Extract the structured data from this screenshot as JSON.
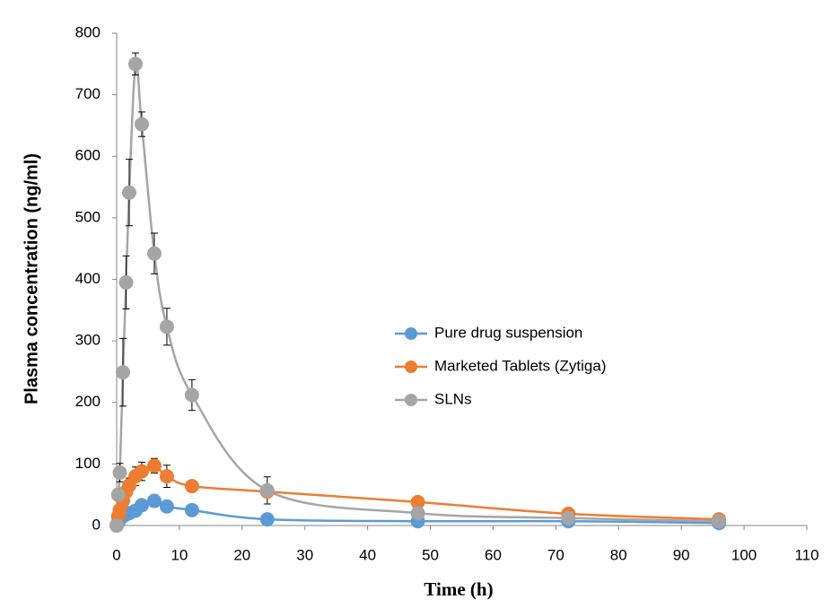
{
  "chart_data": {
    "type": "line",
    "x_label": "Time (h)",
    "y_label": "Plasma concentration (ng/ml)",
    "x": [
      0,
      0.25,
      0.5,
      1,
      1.5,
      2,
      3,
      4,
      6,
      8,
      12,
      24,
      48,
      72,
      96
    ],
    "series": [
      {
        "name": "Pure drug suspension",
        "color": "#5b9bd5",
        "values": [
          0,
          5,
          10,
          15,
          18,
          20,
          24,
          33,
          40,
          31,
          25,
          10,
          7,
          7,
          4
        ],
        "errors": [
          0,
          2,
          3,
          4,
          4,
          5,
          6,
          8,
          10,
          7,
          5,
          3,
          2,
          2,
          1
        ]
      },
      {
        "name": "Marketed Tablets (Zytiga)",
        "color": "#ed7d31",
        "values": [
          0,
          15,
          25,
          40,
          55,
          65,
          80,
          88,
          97,
          80,
          64,
          55,
          38,
          19,
          10
        ],
        "errors": [
          0,
          4,
          6,
          8,
          10,
          12,
          15,
          15,
          12,
          18,
          8,
          6,
          5,
          4,
          3
        ]
      },
      {
        "name": "SLNs",
        "color": "#a5a5a5",
        "values": [
          0,
          50,
          86,
          249,
          395,
          541,
          750,
          652,
          442,
          323,
          212,
          57,
          20,
          12,
          7
        ],
        "errors": [
          0,
          10,
          15,
          55,
          43,
          54,
          18,
          20,
          33,
          30,
          25,
          22,
          5,
          4,
          3
        ]
      }
    ],
    "xlim": [
      0,
      110
    ],
    "xticks": [
      0,
      10,
      20,
      30,
      40,
      50,
      60,
      70,
      80,
      90,
      100,
      110
    ],
    "ylim": [
      0,
      800
    ],
    "yticks": [
      0,
      100,
      200,
      300,
      400,
      500,
      600,
      700,
      800
    ],
    "grid": false,
    "legend": "center"
  }
}
